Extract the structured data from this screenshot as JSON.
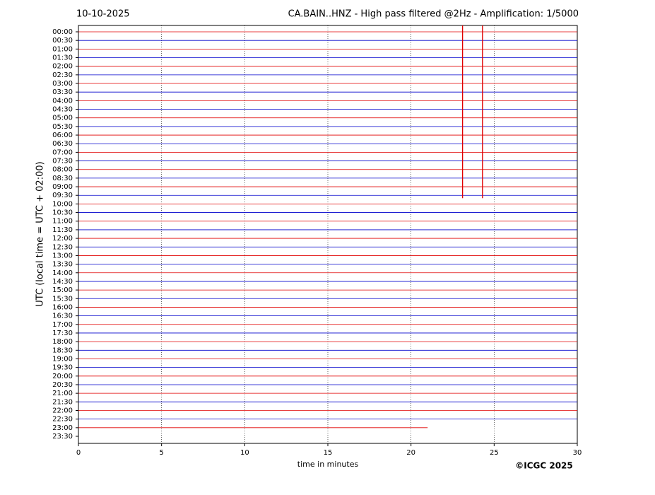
{
  "chart_data": {
    "type": "helicorder",
    "date": "10-10-2025",
    "title": "CA.BAIN..HNZ - High pass filtered @2Hz - Amplification: 1/5000",
    "ylabel": "UTC (local time = UTC + 02:00)",
    "xlabel": "time in minutes",
    "credit": "©ICGC 2025",
    "xlim": [
      0,
      30
    ],
    "xticks": [
      0,
      5,
      10,
      15,
      20,
      25,
      30
    ],
    "grid": true,
    "colors": [
      "#e00000",
      "#0000cc"
    ],
    "categories": [
      "00:00",
      "00:30",
      "01:00",
      "01:30",
      "02:00",
      "02:30",
      "03:00",
      "03:30",
      "04:00",
      "04:30",
      "05:00",
      "05:30",
      "06:00",
      "06:30",
      "07:00",
      "07:30",
      "08:00",
      "08:30",
      "09:00",
      "09:30",
      "10:00",
      "10:30",
      "11:00",
      "11:30",
      "12:00",
      "12:30",
      "13:00",
      "13:30",
      "14:00",
      "14:30",
      "15:00",
      "15:30",
      "16:00",
      "16:30",
      "17:00",
      "17:30",
      "18:00",
      "18:30",
      "19:00",
      "19:30",
      "20:00",
      "20:30",
      "21:00",
      "21:30",
      "22:00",
      "22:30",
      "23:00",
      "23:30"
    ],
    "trace_end": [
      30,
      30,
      30,
      30,
      30,
      30,
      30,
      30,
      30,
      30,
      30,
      30,
      30,
      30,
      30,
      30,
      30,
      30,
      30,
      30,
      30,
      30,
      30,
      30,
      30,
      30,
      30,
      30,
      30,
      30,
      30,
      30,
      30,
      30,
      30,
      30,
      30,
      30,
      30,
      30,
      30,
      30,
      30,
      30,
      30,
      30,
      21,
      null
    ],
    "events_x": [
      23.1,
      24.3
    ]
  }
}
